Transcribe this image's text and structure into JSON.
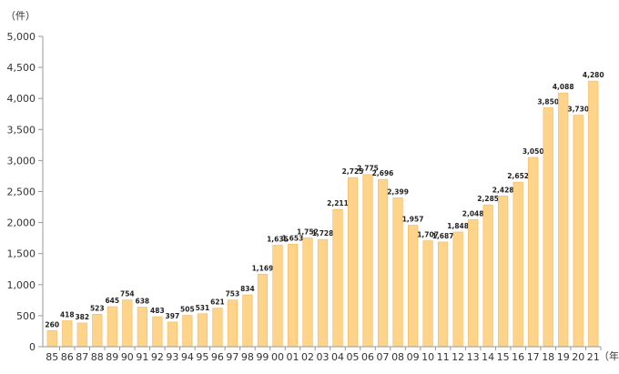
{
  "chart_data": {
    "type": "bar",
    "y_unit": "（件）",
    "x_unit": "（年）",
    "categories": [
      "85",
      "86",
      "87",
      "88",
      "89",
      "90",
      "91",
      "92",
      "93",
      "94",
      "95",
      "96",
      "97",
      "98",
      "99",
      "00",
      "01",
      "02",
      "03",
      "04",
      "05",
      "06",
      "07",
      "08",
      "09",
      "10",
      "11",
      "12",
      "13",
      "14",
      "15",
      "16",
      "17",
      "18",
      "19",
      "20",
      "21"
    ],
    "values": [
      260,
      418,
      382,
      523,
      645,
      754,
      638,
      483,
      397,
      505,
      531,
      621,
      753,
      834,
      1169,
      1635,
      1653,
      1752,
      1728,
      2211,
      2725,
      2775,
      2696,
      2399,
      1957,
      1707,
      1687,
      1848,
      2048,
      2285,
      2428,
      2652,
      3050,
      3850,
      4088,
      3730,
      4280
    ],
    "value_labels": [
      "260",
      "418",
      "382",
      "523",
      "645",
      "754",
      "638",
      "483",
      "397",
      "505",
      "531",
      "621",
      "753",
      "834",
      "1,169",
      "1,635",
      "1,653",
      "1,752",
      "1,728",
      "2,211",
      "2,725",
      "2,775",
      "2,696",
      "2,399",
      "1,957",
      "1,707",
      "1,687",
      "1,848",
      "2,048",
      "2,285",
      "2,428",
      "2,652",
      "3,050",
      "3,850",
      "4,088",
      "3,730",
      "4,280"
    ],
    "yticks": [
      0,
      500,
      1000,
      1500,
      2000,
      2500,
      3000,
      3500,
      4000,
      4500,
      5000
    ],
    "ytick_labels": [
      "0",
      "500",
      "1,000",
      "1,500",
      "2,000",
      "2,500",
      "3,000",
      "3,500",
      "4,000",
      "4,500",
      "5,000"
    ],
    "ylim": [
      0,
      5000
    ],
    "grid": false,
    "colors": {
      "bar_fill": "#fdd48a",
      "bar_stroke": "#f4b860",
      "axis": "#999999"
    }
  }
}
